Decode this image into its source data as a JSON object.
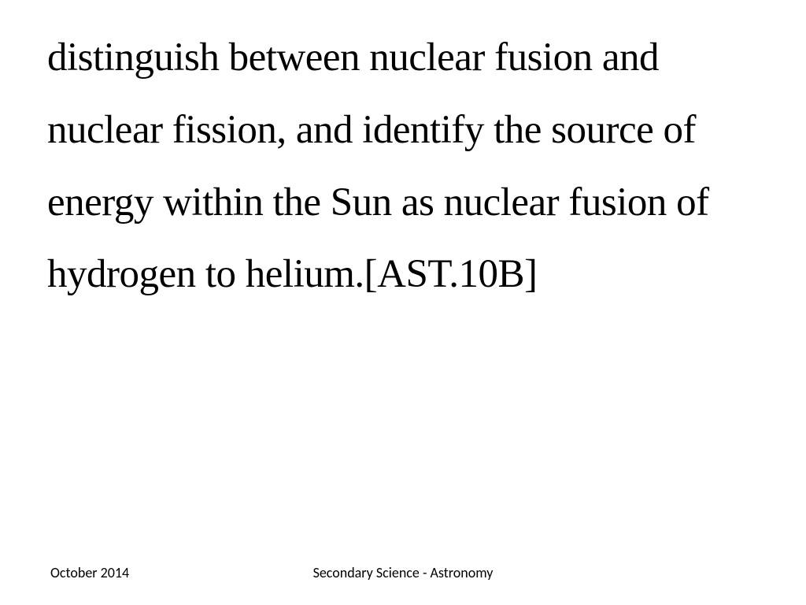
{
  "slide": {
    "body_text": "distinguish between nuclear fusion and nuclear fission, and identify the source of energy within the Sun as nuclear fusion of hydrogen to helium.[AST.10B]",
    "body_font_family": "Comic Sans MS",
    "body_font_size": 51,
    "body_color": "#000000",
    "background_color": "#ffffff"
  },
  "footer": {
    "date": "October 2014",
    "title": "Secondary Science - Astronomy",
    "font_family": "Calibri",
    "font_size": 18,
    "color": "#000000"
  }
}
